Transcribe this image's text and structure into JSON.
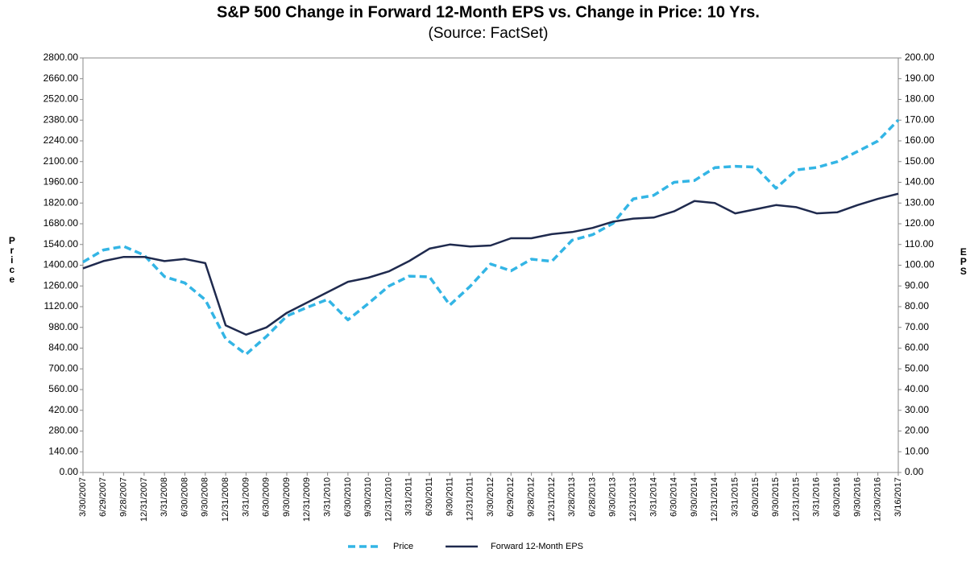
{
  "chart_data": {
    "type": "line",
    "title": "S&P 500 Change in Forward 12-Month EPS vs. Change in Price: 10 Yrs.",
    "subtitle": "(Source: FactSet)",
    "y_label": "Price",
    "y2_label": "EPS",
    "categories": [
      "3/30/2007",
      "6/29/2007",
      "9/28/2007",
      "12/31/2007",
      "3/31/2008",
      "6/30/2008",
      "9/30/2008",
      "12/31/2008",
      "3/31/2009",
      "6/30/2009",
      "9/30/2009",
      "12/31/2009",
      "3/31/2010",
      "6/30/2010",
      "9/30/2010",
      "12/31/2010",
      "3/31/2011",
      "6/30/2011",
      "9/30/2011",
      "12/31/2011",
      "3/30/2012",
      "6/29/2012",
      "9/28/2012",
      "12/31/2012",
      "3/28/2013",
      "6/28/2013",
      "9/30/2013",
      "12/31/2013",
      "3/31/2014",
      "6/30/2014",
      "9/30/2014",
      "12/31/2014",
      "3/31/2015",
      "6/30/2015",
      "9/30/2015",
      "12/31/2015",
      "3/31/2016",
      "6/30/2016",
      "9/30/2016",
      "12/30/2016",
      "3/16/2017"
    ],
    "series": [
      {
        "name": "Price",
        "color": "#33b5e5",
        "dash": true,
        "values": [
          1421,
          1503,
          1527,
          1468,
          1323,
          1280,
          1166,
          903,
          798,
          919,
          1057,
          1115,
          1169,
          1031,
          1141,
          1258,
          1326,
          1321,
          1131,
          1258,
          1408,
          1362,
          1441,
          1426,
          1569,
          1606,
          1682,
          1848,
          1872,
          1960,
          1972,
          2059,
          2068,
          2063,
          1920,
          2044,
          2060,
          2099,
          2168,
          2239,
          2381
        ]
      },
      {
        "name": "Forward 12-Month EPS",
        "color": "#1f2a4e",
        "axis": "y2",
        "values": [
          98.5,
          102,
          104,
          104,
          102,
          103,
          101,
          71,
          66.5,
          70,
          77,
          82,
          87,
          92,
          94,
          97,
          102,
          108,
          110,
          109,
          109.5,
          113,
          113,
          115,
          116,
          118,
          121,
          122.5,
          123,
          126,
          131,
          130,
          125,
          127,
          129,
          128,
          125,
          125.5,
          129,
          132,
          134.5
        ]
      }
    ],
    "ylim": [
      0,
      2800
    ],
    "yticks": [
      {
        "value": 0,
        "label": "0.00"
      },
      {
        "value": 140,
        "label": "140.00"
      },
      {
        "value": 280,
        "label": "280.00"
      },
      {
        "value": 420,
        "label": "420.00"
      },
      {
        "value": 560,
        "label": "560.00"
      },
      {
        "value": 700,
        "label": "700.00"
      },
      {
        "value": 840,
        "label": "840.00"
      },
      {
        "value": 980,
        "label": "980.00"
      },
      {
        "value": 1120,
        "label": "1120.00"
      },
      {
        "value": 1260,
        "label": "1260.00"
      },
      {
        "value": 1400,
        "label": "1400.00"
      },
      {
        "value": 1540,
        "label": "1540.00"
      },
      {
        "value": 1680,
        "label": "1680.00"
      },
      {
        "value": 1820,
        "label": "1820.00"
      },
      {
        "value": 1960,
        "label": "1960.00"
      },
      {
        "value": 2100,
        "label": "2100.00"
      },
      {
        "value": 2240,
        "label": "2240.00"
      },
      {
        "value": 2380,
        "label": "2380.00"
      },
      {
        "value": 2520,
        "label": "2520.00"
      },
      {
        "value": 2660,
        "label": "2660.00"
      },
      {
        "value": 2800,
        "label": "2800.00"
      }
    ],
    "y2lim": [
      0,
      200
    ],
    "y2ticks": [
      {
        "value": 0,
        "label": "0.00"
      },
      {
        "value": 10,
        "label": "10.00"
      },
      {
        "value": 20,
        "label": "20.00"
      },
      {
        "value": 30,
        "label": "30.00"
      },
      {
        "value": 40,
        "label": "40.00"
      },
      {
        "value": 50,
        "label": "50.00"
      },
      {
        "value": 60,
        "label": "60.00"
      },
      {
        "value": 70,
        "label": "70.00"
      },
      {
        "value": 80,
        "label": "80.00"
      },
      {
        "value": 90,
        "label": "90.00"
      },
      {
        "value": 100,
        "label": "100.00"
      },
      {
        "value": 110,
        "label": "110.00"
      },
      {
        "value": 120,
        "label": "120.00"
      },
      {
        "value": 130,
        "label": "130.00"
      },
      {
        "value": 140,
        "label": "140.00"
      },
      {
        "value": 150,
        "label": "150.00"
      },
      {
        "value": 160,
        "label": "160.00"
      },
      {
        "value": 170,
        "label": "170.00"
      },
      {
        "value": 180,
        "label": "180.00"
      },
      {
        "value": 190,
        "label": "190.00"
      },
      {
        "value": 200,
        "label": "200.00"
      }
    ],
    "grid": false,
    "legend": "bottom"
  }
}
